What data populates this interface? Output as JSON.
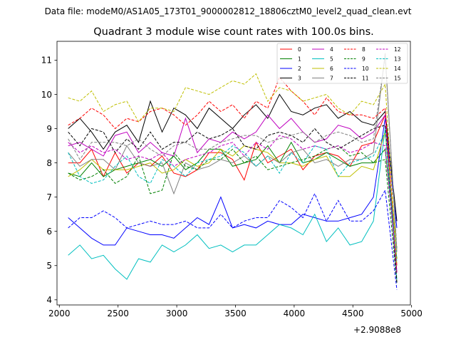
{
  "suptitle": "Data file: modeM0/AS1A05_173T01_9000002812_18806cztM0_level2_quad_clean.evt",
  "chart_data": {
    "type": "line",
    "title": "Quadrant 3 module wise count rates with 100.0s bins.",
    "xlabel": "",
    "ylabel": "",
    "x_offset_label": "+2.9088e8",
    "xlim": [
      1980,
      4990
    ],
    "ylim": [
      3.85,
      11.55
    ],
    "xticks": [
      2000,
      2500,
      3000,
      3500,
      4000,
      4500,
      5000
    ],
    "xtick_labels": [
      "2000",
      "2500",
      "3000",
      "3500",
      "4000",
      "4500",
      "5000"
    ],
    "yticks": [
      4,
      5,
      6,
      7,
      8,
      9,
      10,
      11
    ],
    "ytick_labels": [
      "4",
      "5",
      "6",
      "7",
      "8",
      "9",
      "10",
      "11"
    ],
    "grid": false,
    "legend_position": "top-right",
    "x": [
      2075,
      2175,
      2275,
      2375,
      2475,
      2575,
      2675,
      2775,
      2875,
      2975,
      3075,
      3175,
      3275,
      3375,
      3475,
      3575,
      3675,
      3775,
      3875,
      3975,
      4075,
      4175,
      4275,
      4375,
      4475,
      4575,
      4675,
      4775,
      4875
    ],
    "series": [
      {
        "name": "0",
        "color": "#ff0000",
        "dash": "solid",
        "values": [
          8.0,
          8.0,
          8.4,
          7.6,
          8.3,
          7.7,
          8.0,
          7.9,
          8.2,
          7.7,
          7.6,
          7.8,
          8.3,
          8.3,
          8.1,
          7.5,
          8.6,
          8.0,
          8.2,
          8.4,
          7.8,
          8.2,
          8.3,
          8.2,
          7.9,
          8.5,
          8.6,
          9.4,
          5.0
        ]
      },
      {
        "name": "1",
        "color": "#008000",
        "dash": "solid",
        "values": [
          7.7,
          7.6,
          8.0,
          7.6,
          7.8,
          7.9,
          8.0,
          8.1,
          7.9,
          8.2,
          7.8,
          8.0,
          8.4,
          8.4,
          7.9,
          8.0,
          8.1,
          8.5,
          8.0,
          8.6,
          8.0,
          8.1,
          8.3,
          8.1,
          7.9,
          8.0,
          8.0,
          8.4,
          5.2
        ]
      },
      {
        "name": "2",
        "color": "#0000ff",
        "dash": "solid",
        "values": [
          6.4,
          6.1,
          5.8,
          5.6,
          5.6,
          6.1,
          6.0,
          5.9,
          5.9,
          5.8,
          6.1,
          6.4,
          6.2,
          7.0,
          6.1,
          6.2,
          6.1,
          6.3,
          6.2,
          6.2,
          6.5,
          6.4,
          6.3,
          6.3,
          6.4,
          6.5,
          7.0,
          9.3,
          6.1
        ]
      },
      {
        "name": "3",
        "color": "#000000",
        "dash": "solid",
        "values": [
          9.0,
          9.3,
          8.9,
          8.4,
          8.9,
          9.1,
          8.6,
          9.8,
          8.9,
          9.6,
          9.4,
          9.0,
          9.6,
          9.3,
          9.0,
          9.4,
          9.7,
          9.3,
          10.0,
          9.5,
          9.4,
          9.6,
          9.7,
          9.3,
          9.5,
          9.2,
          9.1,
          9.5,
          6.3
        ]
      },
      {
        "name": "4",
        "color": "#bf00bf",
        "dash": "solid",
        "values": [
          8.5,
          8.6,
          8.4,
          8.2,
          8.8,
          8.9,
          8.3,
          8.6,
          8.3,
          8.2,
          9.3,
          8.3,
          8.7,
          8.6,
          8.9,
          8.7,
          8.9,
          9.4,
          9.0,
          9.3,
          8.9,
          8.6,
          8.7,
          9.1,
          9.0,
          8.7,
          8.9,
          9.4,
          4.8
        ]
      },
      {
        "name": "5",
        "color": "#00bfbf",
        "dash": "solid",
        "values": [
          5.3,
          5.6,
          5.2,
          5.3,
          4.9,
          4.6,
          5.2,
          5.1,
          5.6,
          5.4,
          5.6,
          5.9,
          5.5,
          5.6,
          5.4,
          5.6,
          5.6,
          5.9,
          6.2,
          6.1,
          5.9,
          6.5,
          5.7,
          6.1,
          5.6,
          5.7,
          6.3,
          9.0,
          4.6
        ]
      },
      {
        "name": "6",
        "color": "#bfbf00",
        "dash": "solid",
        "values": [
          7.6,
          7.8,
          8.1,
          7.8,
          7.8,
          7.8,
          7.9,
          8.0,
          7.7,
          7.8,
          8.1,
          7.9,
          8.0,
          8.4,
          8.2,
          8.5,
          8.4,
          8.3,
          8.0,
          8.0,
          7.9,
          8.1,
          8.2,
          7.6,
          7.6,
          7.9,
          7.8,
          8.9,
          5.5
        ]
      },
      {
        "name": "7",
        "color": "#808080",
        "dash": "solid",
        "values": [
          8.3,
          7.9,
          8.1,
          8.1,
          7.8,
          8.5,
          8.0,
          7.9,
          8.0,
          7.1,
          8.0,
          7.8,
          7.9,
          8.1,
          8.0,
          8.2,
          7.9,
          8.2,
          8.0,
          8.3,
          8.4,
          8.0,
          8.1,
          7.9,
          8.1,
          8.1,
          8.3,
          11.2,
          5.4
        ]
      },
      {
        "name": "8",
        "color": "#ff0000",
        "dash": "dashed",
        "values": [
          9.1,
          9.3,
          9.6,
          9.4,
          9.0,
          9.3,
          9.2,
          9.5,
          9.6,
          9.4,
          9.1,
          9.4,
          9.8,
          9.5,
          9.7,
          9.3,
          9.8,
          9.6,
          10.5,
          10.1,
          9.8,
          9.4,
          9.9,
          9.5,
          9.4,
          9.4,
          9.3,
          9.6,
          4.8
        ]
      },
      {
        "name": "9",
        "color": "#008000",
        "dash": "dashed",
        "values": [
          7.7,
          7.5,
          7.6,
          7.8,
          7.4,
          7.6,
          8.2,
          7.1,
          7.2,
          8.3,
          7.9,
          7.8,
          8.1,
          8.1,
          8.4,
          8.0,
          8.2,
          7.8,
          7.9,
          8.0,
          8.1,
          8.2,
          8.4,
          8.5,
          8.2,
          8.3,
          8.0,
          8.1,
          4.5
        ]
      },
      {
        "name": "10",
        "color": "#0000ff",
        "dash": "dashed",
        "values": [
          6.1,
          6.4,
          6.4,
          6.6,
          6.4,
          6.1,
          6.2,
          6.3,
          6.2,
          6.2,
          6.3,
          6.1,
          6.1,
          6.5,
          6.1,
          6.3,
          6.4,
          6.4,
          6.9,
          6.7,
          6.4,
          7.1,
          6.3,
          6.9,
          6.3,
          6.3,
          6.6,
          7.2,
          4.3
        ]
      },
      {
        "name": "11",
        "color": "#000000",
        "dash": "dashed",
        "values": [
          8.9,
          8.5,
          9.0,
          8.9,
          8.3,
          8.7,
          8.4,
          8.9,
          8.4,
          8.6,
          8.6,
          8.9,
          8.7,
          8.8,
          9.0,
          8.5,
          8.4,
          8.8,
          8.9,
          8.8,
          8.6,
          9.0,
          8.6,
          8.4,
          8.6,
          8.8,
          9.0,
          9.1,
          4.5
        ]
      },
      {
        "name": "12",
        "color": "#bf00bf",
        "dash": "dashed",
        "values": [
          8.6,
          8.3,
          8.5,
          8.3,
          8.4,
          8.1,
          8.2,
          8.1,
          8.3,
          7.9,
          8.1,
          8.2,
          8.3,
          8.5,
          8.6,
          8.2,
          8.6,
          8.4,
          8.8,
          8.7,
          8.4,
          8.5,
          8.4,
          8.5,
          8.3,
          8.4,
          8.6,
          8.5,
          4.8
        ]
      },
      {
        "name": "13",
        "color": "#00bfbf",
        "dash": "dashed",
        "values": [
          8.3,
          7.6,
          7.4,
          7.5,
          7.9,
          8.2,
          7.6,
          7.4,
          8.1,
          7.9,
          7.6,
          8.0,
          8.1,
          8.2,
          8.5,
          8.3,
          7.9,
          8.2,
          7.7,
          8.3,
          8.0,
          8.5,
          8.4,
          7.6,
          8.0,
          8.1,
          8.2,
          8.9,
          5.1
        ]
      },
      {
        "name": "14",
        "color": "#bfbf00",
        "dash": "dashed",
        "values": [
          9.9,
          9.8,
          10.1,
          9.5,
          9.7,
          9.8,
          9.2,
          9.6,
          9.6,
          9.5,
          10.2,
          10.1,
          10.0,
          10.2,
          10.4,
          10.3,
          10.6,
          9.8,
          10.2,
          10.1,
          9.8,
          9.9,
          10.0,
          9.6,
          9.4,
          9.8,
          9.7,
          10.3,
          5.0
        ]
      },
      {
        "name": "15",
        "color": "#808080",
        "dash": "dashed",
        "values": [
          8.7,
          8.1,
          8.6,
          8.6,
          8.6,
          8.5,
          8.7,
          8.4,
          8.2,
          8.5,
          8.6,
          8.4,
          8.4,
          8.6,
          8.7,
          8.8,
          8.8,
          8.6,
          8.7,
          8.8,
          8.9,
          8.6,
          8.8,
          8.9,
          8.8,
          8.6,
          8.7,
          11.1,
          5.5
        ]
      }
    ]
  }
}
